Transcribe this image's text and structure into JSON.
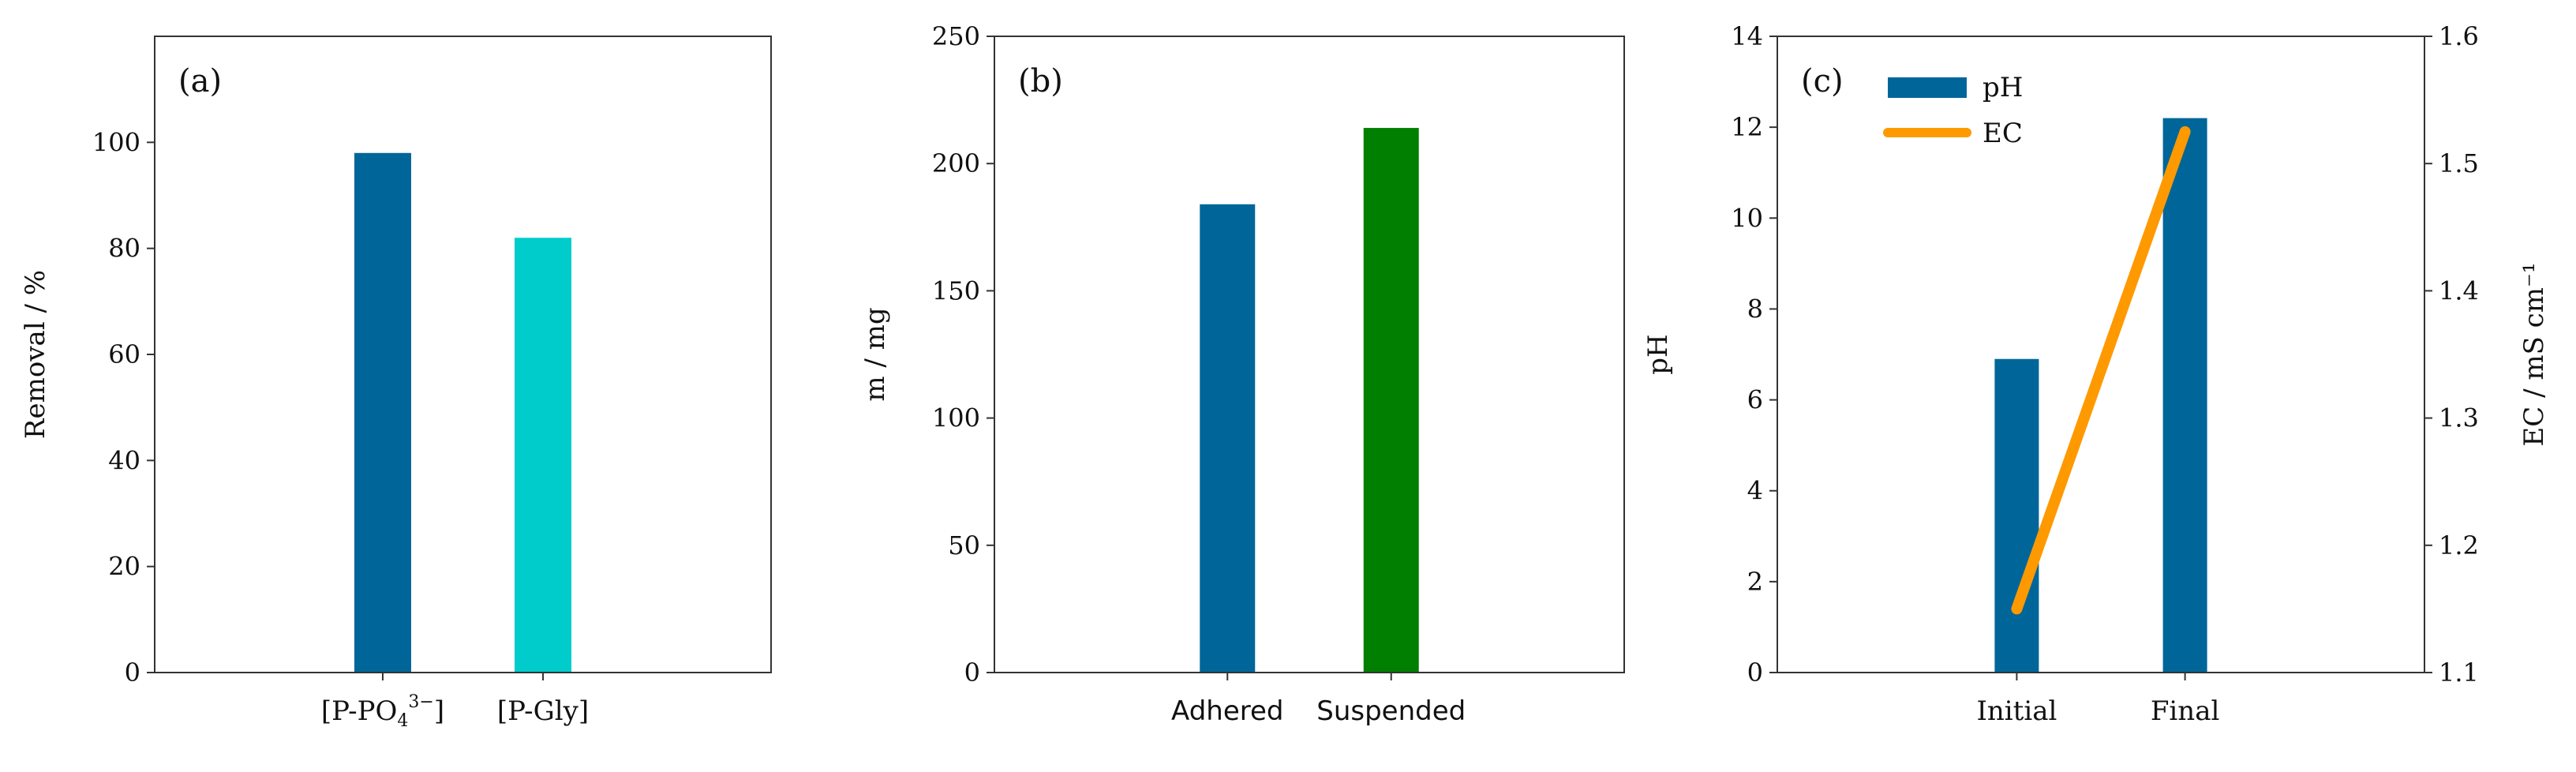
{
  "chart_data": [
    {
      "panel_label": "(a)",
      "type": "bar",
      "categories": [
        "[P-PO4 3−]",
        "[P-Gly]"
      ],
      "category_parts": [
        {
          "base": "[P-PO",
          "sub": "4",
          "sup": "3−",
          "tail": "]"
        },
        {
          "base": "[P-Gly]"
        }
      ],
      "values": [
        98,
        82
      ],
      "colors": [
        "#006699",
        "#00cccc"
      ],
      "ylabel": "Removal / %",
      "ylim": [
        0,
        120
      ],
      "yticks": [
        0,
        20,
        40,
        60,
        80,
        100
      ],
      "grid": false
    },
    {
      "panel_label": "(b)",
      "type": "bar",
      "categories": [
        "Adhered",
        "Suspended"
      ],
      "values": [
        184,
        214
      ],
      "colors": [
        "#006699",
        "#007f00"
      ],
      "ylabel": "m / mg",
      "ylim": [
        0,
        250
      ],
      "yticks": [
        0,
        50,
        100,
        150,
        200,
        250
      ],
      "grid": false
    },
    {
      "panel_label": "(c)",
      "type": "bar",
      "categories": [
        "Initial",
        "Final"
      ],
      "series": [
        {
          "name": "pH",
          "type": "bar",
          "axis": "left",
          "color": "#006699",
          "values": [
            6.9,
            12.2
          ]
        },
        {
          "name": "EC",
          "type": "line",
          "axis": "right",
          "color": "#ff9900",
          "values": [
            1.15,
            1.525
          ]
        }
      ],
      "ylabel": "pH",
      "ylim": [
        0,
        14
      ],
      "yticks": [
        0,
        2,
        4,
        6,
        8,
        10,
        12,
        14
      ],
      "y2label": "EC / mS cm⁻¹",
      "y2lim": [
        1.1,
        1.6
      ],
      "y2ticks": [
        "1.1",
        "1.2",
        "1.3",
        "1.4",
        "1.5",
        "1.6"
      ],
      "legend": "top-left",
      "grid": false
    }
  ]
}
